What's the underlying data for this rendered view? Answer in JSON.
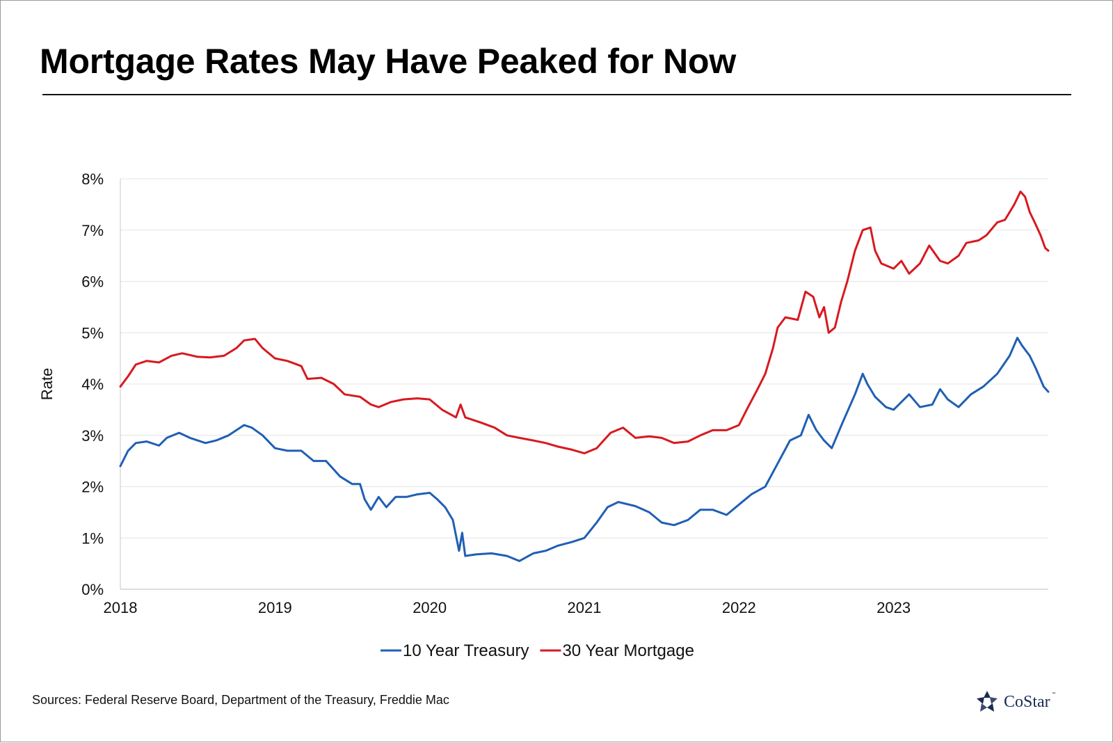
{
  "title": "Mortgage Rates May Have Peaked for Now",
  "source_note": "Sources: Federal Reserve Board, Department of the Treasury, Freddie Mac",
  "brand": {
    "name": "CoStar",
    "tm": "™",
    "logo_icon": "costar-star-logo-icon",
    "color": "#1a2b55"
  },
  "chart_data": {
    "type": "line",
    "title": "",
    "xlabel": "",
    "ylabel": "Rate",
    "x_ticks": [
      "2018",
      "2019",
      "2020",
      "2021",
      "2022",
      "2023"
    ],
    "y_ticks": [
      "0%",
      "1%",
      "2%",
      "3%",
      "4%",
      "5%",
      "6%",
      "7%",
      "8%"
    ],
    "xlim": [
      2018.0,
      2024.0
    ],
    "ylim": [
      0,
      8
    ],
    "grid": "horizontal",
    "legend_placement": "bottom-center",
    "series": [
      {
        "name": "10 Year Treasury",
        "color": "#1f5fb4",
        "points": [
          [
            2018.0,
            2.4
          ],
          [
            2018.05,
            2.7
          ],
          [
            2018.1,
            2.85
          ],
          [
            2018.17,
            2.88
          ],
          [
            2018.25,
            2.8
          ],
          [
            2018.3,
            2.95
          ],
          [
            2018.38,
            3.05
          ],
          [
            2018.45,
            2.95
          ],
          [
            2018.55,
            2.85
          ],
          [
            2018.62,
            2.9
          ],
          [
            2018.7,
            3.0
          ],
          [
            2018.8,
            3.2
          ],
          [
            2018.85,
            3.15
          ],
          [
            2018.92,
            3.0
          ],
          [
            2019.0,
            2.75
          ],
          [
            2019.08,
            2.7
          ],
          [
            2019.17,
            2.7
          ],
          [
            2019.25,
            2.5
          ],
          [
            2019.33,
            2.5
          ],
          [
            2019.42,
            2.2
          ],
          [
            2019.5,
            2.05
          ],
          [
            2019.55,
            2.05
          ],
          [
            2019.58,
            1.75
          ],
          [
            2019.62,
            1.55
          ],
          [
            2019.67,
            1.8
          ],
          [
            2019.72,
            1.6
          ],
          [
            2019.78,
            1.8
          ],
          [
            2019.85,
            1.8
          ],
          [
            2019.92,
            1.85
          ],
          [
            2020.0,
            1.88
          ],
          [
            2020.05,
            1.75
          ],
          [
            2020.1,
            1.6
          ],
          [
            2020.15,
            1.35
          ],
          [
            2020.19,
            0.75
          ],
          [
            2020.21,
            1.1
          ],
          [
            2020.23,
            0.65
          ],
          [
            2020.3,
            0.68
          ],
          [
            2020.4,
            0.7
          ],
          [
            2020.5,
            0.65
          ],
          [
            2020.58,
            0.55
          ],
          [
            2020.67,
            0.7
          ],
          [
            2020.75,
            0.75
          ],
          [
            2020.83,
            0.85
          ],
          [
            2020.92,
            0.92
          ],
          [
            2021.0,
            1.0
          ],
          [
            2021.08,
            1.3
          ],
          [
            2021.15,
            1.6
          ],
          [
            2021.22,
            1.7
          ],
          [
            2021.33,
            1.62
          ],
          [
            2021.42,
            1.5
          ],
          [
            2021.5,
            1.3
          ],
          [
            2021.58,
            1.25
          ],
          [
            2021.67,
            1.35
          ],
          [
            2021.75,
            1.55
          ],
          [
            2021.83,
            1.55
          ],
          [
            2021.92,
            1.45
          ],
          [
            2022.0,
            1.65
          ],
          [
            2022.08,
            1.85
          ],
          [
            2022.17,
            2.0
          ],
          [
            2022.25,
            2.45
          ],
          [
            2022.33,
            2.9
          ],
          [
            2022.4,
            3.0
          ],
          [
            2022.45,
            3.4
          ],
          [
            2022.5,
            3.1
          ],
          [
            2022.55,
            2.9
          ],
          [
            2022.6,
            2.75
          ],
          [
            2022.67,
            3.25
          ],
          [
            2022.75,
            3.8
          ],
          [
            2022.8,
            4.2
          ],
          [
            2022.83,
            4.0
          ],
          [
            2022.88,
            3.75
          ],
          [
            2022.95,
            3.55
          ],
          [
            2023.0,
            3.5
          ],
          [
            2023.1,
            3.8
          ],
          [
            2023.17,
            3.55
          ],
          [
            2023.25,
            3.6
          ],
          [
            2023.3,
            3.9
          ],
          [
            2023.35,
            3.7
          ],
          [
            2023.42,
            3.55
          ],
          [
            2023.5,
            3.8
          ],
          [
            2023.58,
            3.95
          ],
          [
            2023.67,
            4.2
          ],
          [
            2023.75,
            4.55
          ],
          [
            2023.8,
            4.9
          ],
          [
            2023.83,
            4.75
          ],
          [
            2023.88,
            4.55
          ],
          [
            2023.92,
            4.3
          ],
          [
            2023.97,
            3.95
          ],
          [
            2024.0,
            3.85
          ]
        ]
      },
      {
        "name": "30 Year Mortgage",
        "color": "#d71920",
        "points": [
          [
            2018.0,
            3.95
          ],
          [
            2018.05,
            4.15
          ],
          [
            2018.1,
            4.38
          ],
          [
            2018.17,
            4.45
          ],
          [
            2018.25,
            4.42
          ],
          [
            2018.33,
            4.55
          ],
          [
            2018.4,
            4.6
          ],
          [
            2018.5,
            4.53
          ],
          [
            2018.58,
            4.52
          ],
          [
            2018.67,
            4.55
          ],
          [
            2018.75,
            4.7
          ],
          [
            2018.8,
            4.85
          ],
          [
            2018.87,
            4.88
          ],
          [
            2018.92,
            4.7
          ],
          [
            2019.0,
            4.5
          ],
          [
            2019.08,
            4.45
          ],
          [
            2019.17,
            4.35
          ],
          [
            2019.21,
            4.1
          ],
          [
            2019.3,
            4.12
          ],
          [
            2019.38,
            4.0
          ],
          [
            2019.45,
            3.8
          ],
          [
            2019.55,
            3.75
          ],
          [
            2019.62,
            3.6
          ],
          [
            2019.67,
            3.55
          ],
          [
            2019.75,
            3.65
          ],
          [
            2019.83,
            3.7
          ],
          [
            2019.92,
            3.72
          ],
          [
            2020.0,
            3.7
          ],
          [
            2020.08,
            3.5
          ],
          [
            2020.17,
            3.35
          ],
          [
            2020.2,
            3.6
          ],
          [
            2020.23,
            3.35
          ],
          [
            2020.33,
            3.25
          ],
          [
            2020.42,
            3.15
          ],
          [
            2020.5,
            3.0
          ],
          [
            2020.58,
            2.95
          ],
          [
            2020.67,
            2.9
          ],
          [
            2020.75,
            2.85
          ],
          [
            2020.83,
            2.78
          ],
          [
            2020.92,
            2.72
          ],
          [
            2021.0,
            2.65
          ],
          [
            2021.08,
            2.75
          ],
          [
            2021.17,
            3.05
          ],
          [
            2021.25,
            3.15
          ],
          [
            2021.33,
            2.95
          ],
          [
            2021.42,
            2.98
          ],
          [
            2021.5,
            2.95
          ],
          [
            2021.58,
            2.85
          ],
          [
            2021.67,
            2.88
          ],
          [
            2021.75,
            3.0
          ],
          [
            2021.83,
            3.1
          ],
          [
            2021.92,
            3.1
          ],
          [
            2022.0,
            3.2
          ],
          [
            2022.05,
            3.5
          ],
          [
            2022.12,
            3.9
          ],
          [
            2022.17,
            4.2
          ],
          [
            2022.22,
            4.7
          ],
          [
            2022.25,
            5.1
          ],
          [
            2022.3,
            5.3
          ],
          [
            2022.38,
            5.25
          ],
          [
            2022.43,
            5.8
          ],
          [
            2022.48,
            5.7
          ],
          [
            2022.52,
            5.3
          ],
          [
            2022.55,
            5.5
          ],
          [
            2022.58,
            5.0
          ],
          [
            2022.62,
            5.1
          ],
          [
            2022.66,
            5.6
          ],
          [
            2022.7,
            6.0
          ],
          [
            2022.75,
            6.6
          ],
          [
            2022.8,
            7.0
          ],
          [
            2022.85,
            7.05
          ],
          [
            2022.88,
            6.6
          ],
          [
            2022.92,
            6.35
          ],
          [
            2023.0,
            6.25
          ],
          [
            2023.05,
            6.4
          ],
          [
            2023.1,
            6.15
          ],
          [
            2023.17,
            6.35
          ],
          [
            2023.23,
            6.7
          ],
          [
            2023.3,
            6.4
          ],
          [
            2023.35,
            6.35
          ],
          [
            2023.42,
            6.5
          ],
          [
            2023.47,
            6.75
          ],
          [
            2023.55,
            6.8
          ],
          [
            2023.6,
            6.9
          ],
          [
            2023.67,
            7.15
          ],
          [
            2023.72,
            7.2
          ],
          [
            2023.78,
            7.5
          ],
          [
            2023.82,
            7.75
          ],
          [
            2023.85,
            7.65
          ],
          [
            2023.88,
            7.35
          ],
          [
            2023.92,
            7.1
          ],
          [
            2023.95,
            6.9
          ],
          [
            2023.98,
            6.65
          ],
          [
            2024.0,
            6.6
          ]
        ]
      }
    ]
  }
}
